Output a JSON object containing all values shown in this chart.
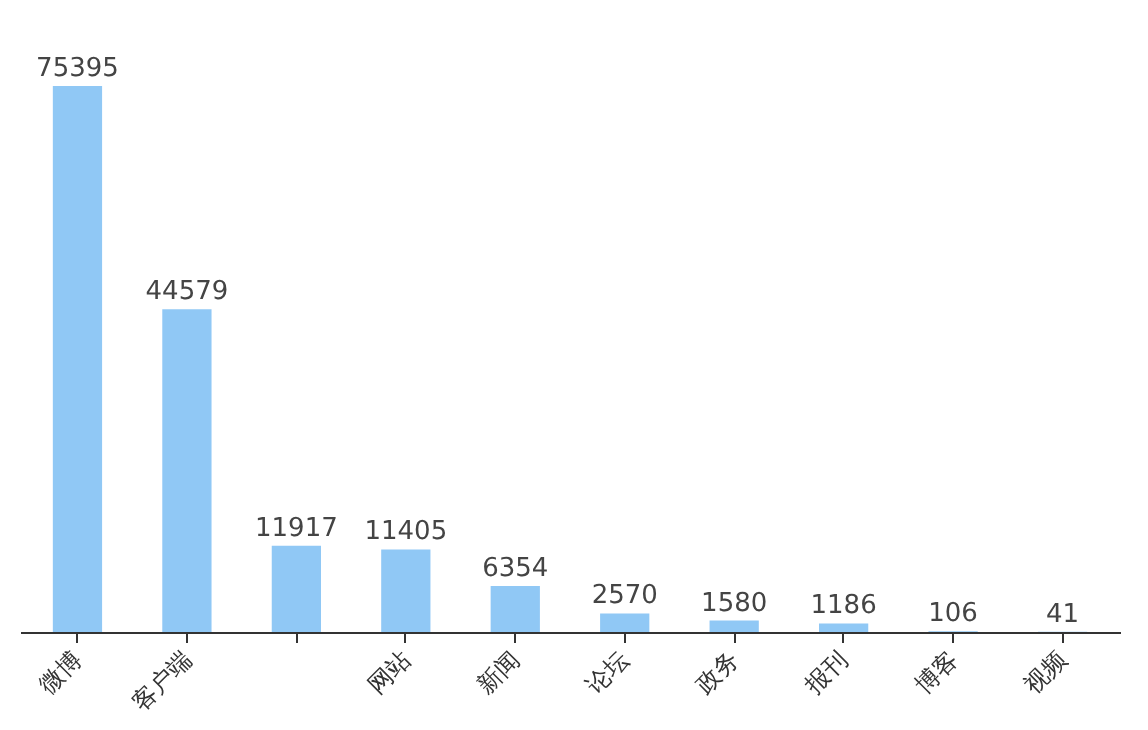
{
  "chart_data": {
    "type": "bar",
    "categories": [
      "微博",
      "客户端",
      null,
      "网站",
      "新闻",
      "论坛",
      "政务",
      "报刊",
      "博客",
      "视频"
    ],
    "values": [
      75395,
      44579,
      11917,
      11405,
      6354,
      2570,
      1580,
      1186,
      106,
      41
    ],
    "color": "#90c8f5",
    "data_labels": true
  }
}
